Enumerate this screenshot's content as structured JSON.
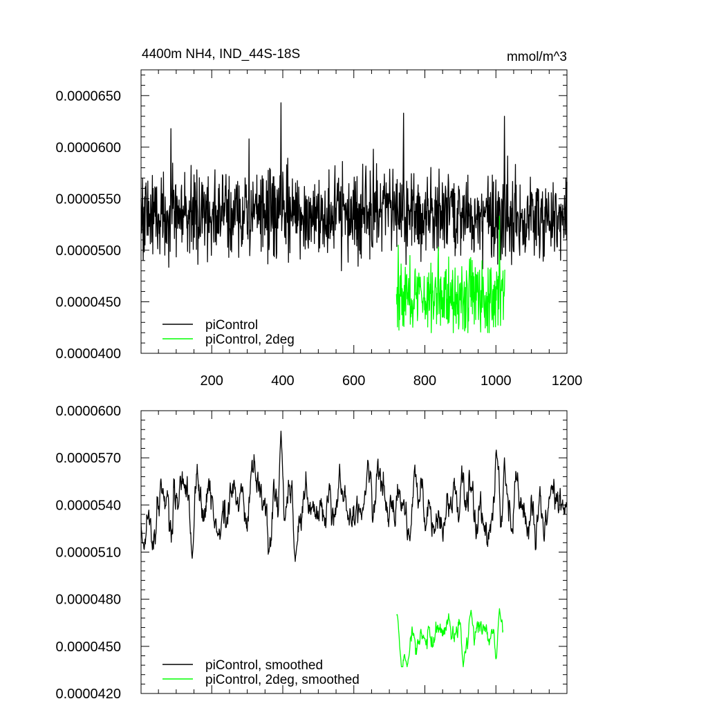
{
  "chart_data": [
    {
      "type": "line",
      "title": "4400m NH4, IND_44S-18S",
      "units": "mmol/m^3",
      "xlabel": "",
      "ylabel": "",
      "xlim": [
        1,
        1200
      ],
      "ylim": [
        4e-05,
        6.75e-05
      ],
      "xticks": [
        200,
        400,
        600,
        800,
        1000,
        1200
      ],
      "xtick_labels": [
        "200",
        "400",
        "600",
        "800",
        "1000",
        "1200"
      ],
      "yticks": [
        4e-05,
        4.5e-05,
        5e-05,
        5.5e-05,
        6e-05,
        6.5e-05
      ],
      "ytick_labels": [
        "0.0000400",
        "0.0000450",
        "0.0000500",
        "0.0000550",
        "0.0000600",
        "0.0000650"
      ],
      "grid": false,
      "legend_position": "bottom-left",
      "series": [
        {
          "name": "piControl",
          "color": "#000000",
          "x_start": 1,
          "x_end": 1200,
          "mean": 5.35e-05,
          "noise": 2.1e-06,
          "min": 4.73e-05,
          "max": 6.43e-05,
          "peaks": [
            [
              85,
              6.18e-05
            ],
            [
              395,
              6.43e-05
            ],
            [
              740,
              6.33e-05
            ],
            [
              1024,
              6.3e-05
            ],
            [
              305,
              6.08e-05
            ],
            [
              655,
              5.98e-05
            ]
          ]
        },
        {
          "name": "piControl, 2deg",
          "color": "#00ff00",
          "x_start": 720,
          "x_end": 1025,
          "mean": 4.56e-05,
          "noise": 1.7e-06,
          "min": 4.2e-05,
          "max": 5.33e-05,
          "peaks": [
            [
              725,
              5.05e-05
            ],
            [
              838,
              5.03e-05
            ],
            [
              1010,
              5.33e-05
            ]
          ]
        }
      ]
    },
    {
      "type": "line",
      "title": "",
      "xlabel": "",
      "ylabel": "",
      "xlim": [
        1,
        1200
      ],
      "ylim": [
        4.2e-05,
        6e-05
      ],
      "xticks": [
        200,
        400,
        600,
        800,
        1000,
        1200
      ],
      "xtick_labels": [],
      "yticks": [
        4.2e-05,
        4.5e-05,
        4.8e-05,
        5.1e-05,
        5.4e-05,
        5.7e-05,
        6e-05
      ],
      "ytick_labels": [
        "0.0000420",
        "0.0000450",
        "0.0000480",
        "0.0000510",
        "0.0000540",
        "0.0000570",
        "0.0000600"
      ],
      "grid": false,
      "legend_position": "bottom-left",
      "series": [
        {
          "name": "piControl, smoothed",
          "color": "#000000",
          "x_start": 1,
          "x_end": 1200,
          "mean": 5.37e-05,
          "noise": 1.2e-06,
          "min": 5.03e-05,
          "max": 5.87e-05,
          "peaks": [
            [
              395,
              5.87e-05
            ],
            [
              1024,
              5.7e-05
            ],
            [
              560,
              5.66e-05
            ],
            [
              145,
              5.06e-05
            ],
            [
              435,
              5.04e-05
            ]
          ]
        },
        {
          "name": "piControl, 2deg, smoothed",
          "color": "#00ff00",
          "x_start": 720,
          "x_end": 1020,
          "mean": 4.56e-05,
          "noise": 7e-07,
          "min": 4.37e-05,
          "max": 4.74e-05,
          "peaks": [
            [
              720,
              4.7e-05
            ],
            [
              930,
              4.73e-05
            ],
            [
              1010,
              4.74e-05
            ],
            [
              750,
              4.37e-05
            ],
            [
              908,
              4.37e-05
            ]
          ]
        }
      ]
    }
  ]
}
